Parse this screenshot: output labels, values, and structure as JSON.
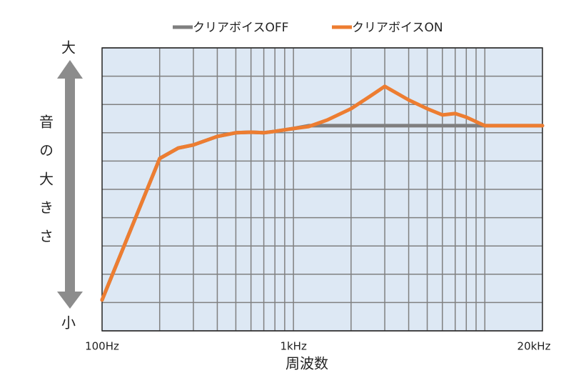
{
  "chart_data": {
    "type": "line",
    "xlabel": "周波数",
    "ylabel": "音の大きさ",
    "y_top_label": "大",
    "y_bottom_label": "小",
    "log_x": true,
    "xlim": [
      100,
      20000
    ],
    "xticks": [
      {
        "value": 100,
        "label": "100Hz"
      },
      {
        "value": 1000,
        "label": "1kHz"
      },
      {
        "value": 20000,
        "label": "20kHz"
      }
    ],
    "xgrid": [
      200,
      300,
      400,
      500,
      600,
      700,
      800,
      900,
      1000,
      2000,
      3000,
      4000,
      5000,
      6000,
      7000,
      8000,
      9000,
      10000
    ],
    "ylim": [
      0,
      10
    ],
    "yticks": [
      0,
      1,
      2,
      3,
      4,
      5,
      6,
      7,
      8,
      9,
      10
    ],
    "grid": true,
    "legend": "top",
    "series": [
      {
        "name": "クリアボイスOFF",
        "color": "#7f7f7f",
        "x": [
          100,
          200,
          250,
          300,
          400,
          500,
          600,
          700,
          800,
          1000,
          1200,
          10000,
          20000
        ],
        "values": [
          1.09,
          6.09,
          6.46,
          6.57,
          6.87,
          7.0,
          7.02,
          7.0,
          7.05,
          7.15,
          7.25,
          7.25,
          7.25
        ]
      },
      {
        "name": "クリアボイスON",
        "color": "#ed7d31",
        "x": [
          100,
          200,
          250,
          300,
          400,
          500,
          600,
          700,
          800,
          1000,
          1200,
          1500,
          2000,
          2500,
          3000,
          4000,
          5000,
          6000,
          7000,
          8000,
          10000,
          20000
        ],
        "values": [
          1.09,
          6.09,
          6.46,
          6.57,
          6.87,
          7.0,
          7.02,
          7.0,
          7.05,
          7.15,
          7.22,
          7.45,
          7.85,
          8.28,
          8.64,
          8.16,
          7.85,
          7.63,
          7.68,
          7.55,
          7.25,
          7.25
        ]
      }
    ]
  }
}
